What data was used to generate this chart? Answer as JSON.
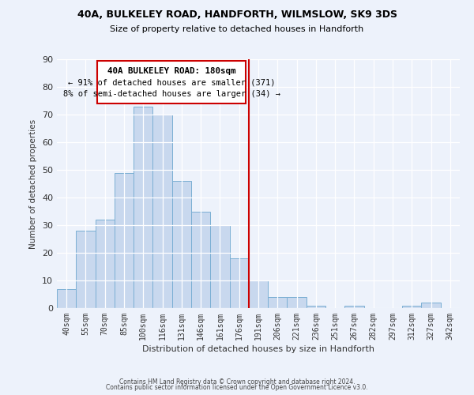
{
  "title": "40A, BULKELEY ROAD, HANDFORTH, WILMSLOW, SK9 3DS",
  "subtitle": "Size of property relative to detached houses in Handforth",
  "xlabel": "Distribution of detached houses by size in Handforth",
  "ylabel": "Number of detached properties",
  "bar_color": "#c8d8ee",
  "bar_edge_color": "#7bafd4",
  "categories": [
    "40sqm",
    "55sqm",
    "70sqm",
    "85sqm",
    "100sqm",
    "116sqm",
    "131sqm",
    "146sqm",
    "161sqm",
    "176sqm",
    "191sqm",
    "206sqm",
    "221sqm",
    "236sqm",
    "251sqm",
    "267sqm",
    "282sqm",
    "297sqm",
    "312sqm",
    "327sqm",
    "342sqm"
  ],
  "values": [
    7,
    28,
    32,
    49,
    73,
    70,
    46,
    35,
    30,
    18,
    10,
    4,
    4,
    1,
    0,
    1,
    0,
    0,
    1,
    2,
    0
  ],
  "ylim": [
    0,
    90
  ],
  "yticks": [
    0,
    10,
    20,
    30,
    40,
    50,
    60,
    70,
    80,
    90
  ],
  "property_line_x": 9.5,
  "annotation_title": "40A BULKELEY ROAD: 180sqm",
  "annotation_line1": "← 91% of detached houses are smaller (371)",
  "annotation_line2": "8% of semi-detached houses are larger (34) →",
  "annotation_box_color": "#ffffff",
  "annotation_box_edge": "#cc0000",
  "property_line_color": "#cc0000",
  "footer1": "Contains HM Land Registry data © Crown copyright and database right 2024.",
  "footer2": "Contains public sector information licensed under the Open Government Licence v3.0.",
  "background_color": "#edf2fb"
}
